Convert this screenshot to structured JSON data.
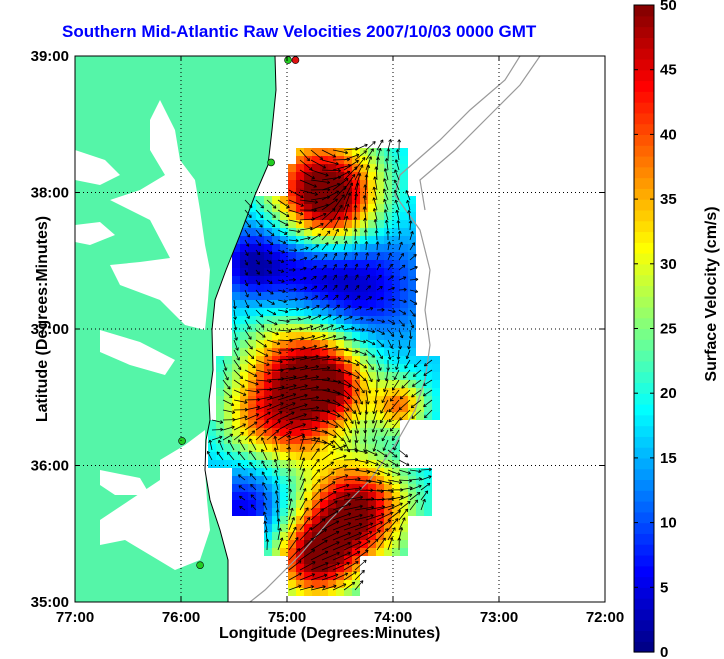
{
  "title": "Southern Mid-Atlantic Raw Velocities 2007/10/03 0000 GMT",
  "map": {
    "xlabel": "Longitude (Degrees:Minutes)",
    "ylabel": "Latitude (Degrees:Minutes)",
    "x_ticks": [
      {
        "value": -77,
        "label": "77:00"
      },
      {
        "value": -76,
        "label": "76:00"
      },
      {
        "value": -75,
        "label": "75:00"
      },
      {
        "value": -74,
        "label": "74:00"
      },
      {
        "value": -73,
        "label": "73:00"
      },
      {
        "value": -72,
        "label": "72:00"
      }
    ],
    "y_ticks": [
      {
        "value": 35,
        "label": "35:00"
      },
      {
        "value": 36,
        "label": "36:00"
      },
      {
        "value": 37,
        "label": "37:00"
      },
      {
        "value": 38,
        "label": "38:00"
      },
      {
        "value": 39,
        "label": "39:00"
      }
    ],
    "lon_range": [
      -77,
      -72
    ],
    "lat_range": [
      35,
      39
    ],
    "land_color": "#55f5a8",
    "grid": true
  },
  "colorbar": {
    "label": "Surface Velocity (cm/s)",
    "range": [
      0,
      50
    ],
    "ticks": [
      0,
      5,
      10,
      15,
      20,
      25,
      30,
      35,
      40,
      45,
      50
    ]
  },
  "markers": [
    {
      "name": "site-marker",
      "lon": -75.82,
      "lat": 35.27,
      "color": "#22cc22"
    },
    {
      "name": "site-marker",
      "lon": -75.99,
      "lat": 36.18,
      "color": "#22cc22"
    },
    {
      "name": "site-marker",
      "lon": -75.15,
      "lat": 38.22,
      "color": "#22cc22"
    },
    {
      "name": "site-marker",
      "lon": -74.92,
      "lat": 38.97,
      "color": "#dd1111"
    },
    {
      "name": "site-marker",
      "lon": -74.99,
      "lat": 38.97,
      "color": "#22cc22"
    }
  ]
}
